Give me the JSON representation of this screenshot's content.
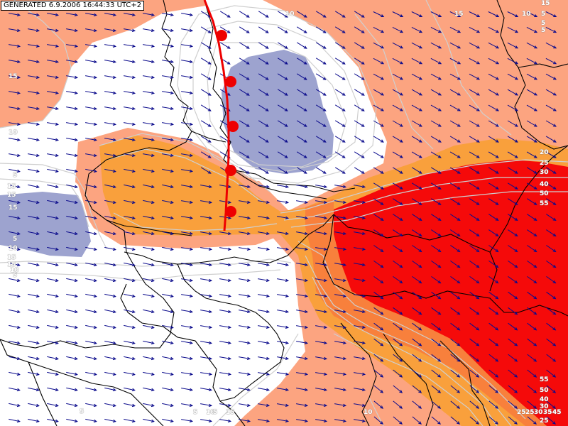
{
  "header": {
    "generated_stamp": "GENERATED 6.9.2006 16:44:33 UTC+2"
  },
  "colors": {
    "background": "#ffffff",
    "light_orange": "#fca480",
    "orange": "#f9a03c",
    "red": "#f50a0a",
    "blue_cold": "#9da3cf",
    "contour": "#cfcfcf",
    "border": "#000000",
    "arrow": "#0b0b8c",
    "front": "#ee0000"
  },
  "contour_labels": [
    {
      "text": "15"
    },
    {
      "text": "15"
    },
    {
      "text": "10"
    },
    {
      "text": "10"
    },
    {
      "text": "5"
    },
    {
      "text": "15"
    },
    {
      "text": "15"
    },
    {
      "text": "15"
    },
    {
      "text": "5"
    },
    {
      "text": "10"
    },
    {
      "text": "15"
    },
    {
      "text": "15"
    },
    {
      "text": "10"
    },
    {
      "text": "5"
    },
    {
      "text": "5"
    },
    {
      "text": "15"
    },
    {
      "text": "10"
    },
    {
      "text": "5"
    },
    {
      "text": "5"
    },
    {
      "text": "5"
    },
    {
      "text": "20"
    },
    {
      "text": "25"
    },
    {
      "text": "30"
    },
    {
      "text": "40"
    },
    {
      "text": "50"
    },
    {
      "text": "55"
    },
    {
      "text": "55"
    },
    {
      "text": "50"
    },
    {
      "text": "40"
    },
    {
      "text": "30"
    },
    {
      "text": "25"
    },
    {
      "text": "30"
    },
    {
      "text": "5"
    },
    {
      "text": "10"
    },
    {
      "text": "15"
    },
    {
      "text": "10"
    },
    {
      "text": "5"
    },
    {
      "text": "25"
    },
    {
      "text": "35"
    },
    {
      "text": "45"
    },
    {
      "text": "25"
    }
  ],
  "legend_icons": {
    "wind": "wind-arrow-icon",
    "front": "warm-front-icon"
  }
}
